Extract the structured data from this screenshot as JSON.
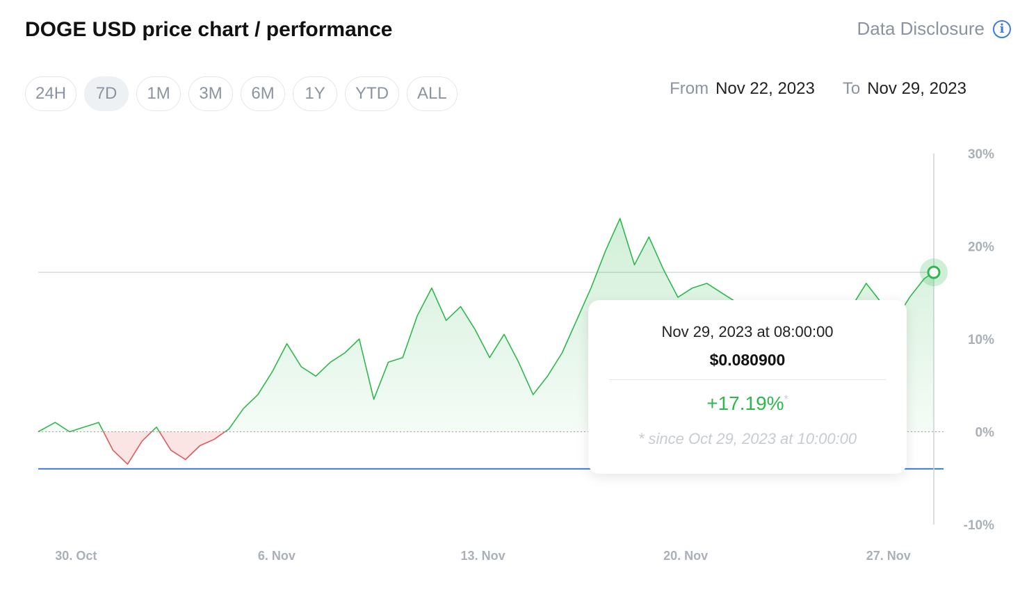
{
  "header": {
    "title": "DOGE USD price chart / performance",
    "disclosure_label": "Data Disclosure"
  },
  "ranges": [
    {
      "label": "24H",
      "active": false
    },
    {
      "label": "7D",
      "active": true
    },
    {
      "label": "1M",
      "active": false
    },
    {
      "label": "3M",
      "active": false
    },
    {
      "label": "6M",
      "active": false
    },
    {
      "label": "1Y",
      "active": false
    },
    {
      "label": "YTD",
      "active": false
    },
    {
      "label": "ALL",
      "active": false
    }
  ],
  "date_range": {
    "from_label": "From",
    "from_value": "Nov 22, 2023",
    "to_label": "To",
    "to_value": "Nov 29, 2023"
  },
  "tooltip": {
    "datetime": "Nov 29, 2023 at 08:00:00",
    "price": "$0.080900",
    "change": "+17.19%",
    "change_marker": "*",
    "since": "* since Oct 29, 2023 at 10:00:00"
  },
  "colors": {
    "up": "#2db84d",
    "down": "#e05a5a",
    "reference_line": "#3b7ddd",
    "axis_text": "#a9b0b8"
  },
  "chart_data": {
    "type": "area",
    "ylabel": "",
    "xlabel": "",
    "y_unit": "%",
    "ylim": [
      -10,
      30
    ],
    "y_ticks": [
      30,
      20,
      10,
      0,
      -10
    ],
    "y_tick_labels": [
      "30%",
      "20%",
      "10%",
      "0%",
      "-10%"
    ],
    "x_range": [
      "2023-10-29T10:00",
      "2023-11-29T08:00"
    ],
    "x_ticks": [
      {
        "date": "2023-10-30",
        "label": "30. Oct"
      },
      {
        "date": "2023-11-06",
        "label": "6. Nov"
      },
      {
        "date": "2023-11-13",
        "label": "13. Nov"
      },
      {
        "date": "2023-11-20",
        "label": "20. Nov"
      },
      {
        "date": "2023-11-27",
        "label": "27. Nov"
      }
    ],
    "baseline": 0,
    "reference_line": -4,
    "hover_level": 17.19,
    "hover_point": {
      "date": "2023-11-29T08:00",
      "value": 17.19
    },
    "series": [
      {
        "x": [
          "2023-10-29T10:00",
          "2023-10-30T00:00",
          "2023-10-30T12:00",
          "2023-10-31T00:00",
          "2023-10-31T12:00",
          "2023-11-01T00:00",
          "2023-11-01T12:00",
          "2023-11-02T00:00",
          "2023-11-02T12:00",
          "2023-11-03T00:00",
          "2023-11-03T12:00",
          "2023-11-04T00:00",
          "2023-11-04T12:00",
          "2023-11-05T00:00",
          "2023-11-05T12:00",
          "2023-11-06T00:00",
          "2023-11-06T12:00",
          "2023-11-07T00:00",
          "2023-11-07T12:00",
          "2023-11-08T00:00",
          "2023-11-08T12:00",
          "2023-11-09T00:00",
          "2023-11-09T12:00",
          "2023-11-10T00:00",
          "2023-11-10T12:00",
          "2023-11-11T00:00",
          "2023-11-11T12:00",
          "2023-11-12T00:00",
          "2023-11-12T12:00",
          "2023-11-13T00:00",
          "2023-11-13T12:00",
          "2023-11-14T00:00",
          "2023-11-14T12:00",
          "2023-11-15T00:00",
          "2023-11-15T12:00",
          "2023-11-16T00:00",
          "2023-11-16T12:00",
          "2023-11-17T00:00",
          "2023-11-17T12:00",
          "2023-11-18T00:00",
          "2023-11-18T12:00",
          "2023-11-19T00:00",
          "2023-11-19T12:00",
          "2023-11-20T00:00",
          "2023-11-20T12:00",
          "2023-11-21T00:00",
          "2023-11-21T12:00",
          "2023-11-22T00:00",
          "2023-11-22T12:00",
          "2023-11-23T00:00",
          "2023-11-23T12:00",
          "2023-11-24T00:00",
          "2023-11-24T12:00",
          "2023-11-25T00:00",
          "2023-11-25T12:00",
          "2023-11-26T00:00",
          "2023-11-26T12:00",
          "2023-11-27T00:00",
          "2023-11-27T12:00",
          "2023-11-28T00:00",
          "2023-11-28T12:00",
          "2023-11-29T00:00",
          "2023-11-29T08:00"
        ],
        "values": [
          0.0,
          1.0,
          0.0,
          0.5,
          1.0,
          -2.0,
          -3.5,
          -1.0,
          0.5,
          -2.0,
          -3.0,
          -1.5,
          -0.8,
          0.3,
          2.5,
          4.0,
          6.5,
          9.5,
          7.0,
          6.0,
          7.5,
          8.5,
          10.0,
          3.5,
          7.5,
          8.0,
          12.5,
          15.5,
          12.0,
          13.5,
          11.0,
          8.0,
          10.5,
          7.5,
          4.0,
          6.0,
          8.5,
          12.0,
          15.5,
          19.5,
          23.0,
          18.0,
          21.0,
          17.5,
          14.5,
          15.5,
          16.0,
          15.0,
          14.0,
          13.5,
          13.5,
          13.0,
          13.5,
          14.0,
          13.5,
          12.5,
          13.5,
          16.0,
          14.0,
          12.0,
          14.5,
          16.5,
          17.19
        ]
      }
    ]
  }
}
